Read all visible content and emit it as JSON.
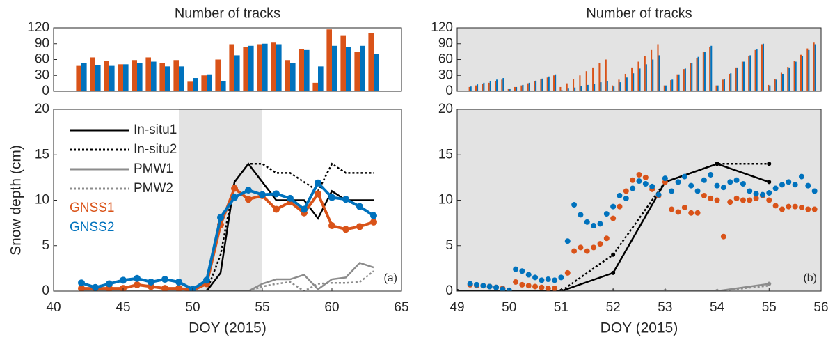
{
  "chart_data": [
    {
      "type": "bar",
      "title": "Number of tracks",
      "xlim": [
        40,
        65
      ],
      "ylim": [
        0,
        120
      ],
      "yticks": [
        0,
        30,
        60,
        90,
        120
      ],
      "x": [
        42,
        43,
        44,
        45,
        46,
        47,
        48,
        49,
        50,
        51,
        52,
        53,
        54,
        55,
        56,
        57,
        58,
        59,
        60,
        61,
        62,
        63
      ],
      "series": [
        {
          "color": "#d95319",
          "values": [
            48,
            64,
            57,
            51,
            59,
            64,
            53,
            59,
            18,
            30,
            60,
            89,
            84,
            89,
            92,
            59,
            80,
            16,
            117,
            106,
            74,
            110
          ]
        },
        {
          "color": "#0072bd",
          "values": [
            54,
            50,
            48,
            51,
            54,
            56,
            47,
            47,
            25,
            32,
            19,
            68,
            86,
            90,
            89,
            54,
            78,
            47,
            86,
            84,
            86,
            71
          ]
        }
      ]
    },
    {
      "type": "line",
      "xlabel": "DOY (2015)",
      "ylabel": "Snow depth (cm)",
      "annotation": "(a)",
      "legend": "upper left",
      "shade": [
        49,
        55
      ],
      "xlim": [
        40,
        65
      ],
      "xticks": [
        40,
        45,
        50,
        55,
        60,
        65
      ],
      "ylim": [
        0,
        20
      ],
      "yticks": [
        0,
        5,
        10,
        15,
        20
      ],
      "x": [
        42,
        43,
        44,
        45,
        46,
        47,
        48,
        49,
        50,
        51,
        52,
        53,
        54,
        55,
        56,
        57,
        58,
        59,
        60,
        61,
        62,
        63
      ],
      "series": [
        {
          "name": "In-situ1",
          "color": "#000000",
          "dash": "solid",
          "values": [
            0,
            0,
            0,
            0,
            0,
            0,
            0,
            0,
            0,
            0,
            2,
            12,
            14,
            12,
            10,
            10,
            10,
            8,
            11,
            10,
            10,
            10
          ]
        },
        {
          "name": "In-situ2",
          "color": "#000000",
          "dash": "dotted",
          "values": [
            0,
            0,
            0,
            0,
            0,
            0,
            0,
            0,
            0,
            0,
            4,
            12,
            14,
            14,
            13,
            13,
            12,
            11,
            14,
            13,
            13,
            13
          ]
        },
        {
          "name": "PMW1",
          "color": "#8c8c8c",
          "dash": "solid",
          "values": [
            0,
            0,
            0,
            0,
            0,
            0,
            0,
            0,
            0,
            0,
            0,
            0,
            0,
            0.8,
            1.3,
            1.3,
            1.8,
            0.2,
            1.3,
            1.5,
            3.1,
            2.6
          ]
        },
        {
          "name": "PMW2",
          "color": "#8c8c8c",
          "dash": "dotted",
          "values": [
            0,
            0,
            0,
            0,
            0,
            0,
            0,
            0,
            0,
            0,
            0,
            0,
            0,
            0.5,
            0.8,
            1.0,
            0,
            0.8,
            0.9,
            0.9,
            1.0,
            2.2
          ]
        },
        {
          "name": "GNSS1",
          "color": "#d95319",
          "dash": "solid",
          "marker": true,
          "values": [
            0.3,
            0.3,
            0.3,
            0.3,
            0.7,
            0.5,
            0.3,
            0.3,
            0.1,
            0.8,
            7.3,
            11.3,
            10.1,
            10.5,
            9,
            9.8,
            8.6,
            10.7,
            7.2,
            6.8,
            7.1,
            7.6
          ]
        },
        {
          "name": "GNSS2",
          "color": "#0072bd",
          "dash": "solid",
          "marker": true,
          "values": [
            0.9,
            0.4,
            0.8,
            1.2,
            1.4,
            1.0,
            1.3,
            1.0,
            0.2,
            1.2,
            8.1,
            10.3,
            11.1,
            10.6,
            10.7,
            10.2,
            9,
            11.9,
            10.3,
            10.1,
            9.3,
            8.3
          ]
        }
      ]
    },
    {
      "type": "bar",
      "title": "Number of tracks",
      "shade": [
        49,
        56
      ],
      "xlim": [
        49,
        56
      ],
      "ylim": [
        0,
        120
      ],
      "yticks": [
        0,
        30,
        60,
        90,
        120
      ],
      "x": [
        49.25,
        49.375,
        49.5,
        49.625,
        49.75,
        49.875,
        50,
        50.125,
        50.25,
        50.375,
        50.5,
        50.625,
        50.75,
        50.875,
        51,
        51.125,
        51.25,
        51.375,
        51.5,
        51.625,
        51.75,
        51.875,
        52,
        52.125,
        52.25,
        52.375,
        52.5,
        52.625,
        52.75,
        52.875,
        53,
        53.125,
        53.25,
        53.375,
        53.5,
        53.625,
        53.75,
        53.875,
        54,
        54.125,
        54.25,
        54.375,
        54.5,
        54.625,
        54.75,
        54.875,
        55,
        55.125,
        55.25,
        55.375,
        55.5,
        55.625,
        55.75,
        55.875
      ],
      "series": [
        {
          "color": "#d95319",
          "values": [
            8,
            11,
            14,
            16,
            19,
            22,
            4,
            8,
            11,
            15,
            19,
            23,
            26,
            30,
            8,
            15,
            23,
            30,
            38,
            45,
            53,
            60,
            11,
            22,
            33,
            45,
            56,
            67,
            78,
            89,
            11,
            21,
            32,
            42,
            53,
            63,
            74,
            84,
            11,
            22,
            33,
            45,
            56,
            67,
            78,
            89,
            12,
            23,
            35,
            46,
            58,
            69,
            81,
            92
          ]
        },
        {
          "color": "#0072bd",
          "values": [
            9,
            13,
            16,
            19,
            22,
            25,
            4,
            8,
            12,
            16,
            20,
            24,
            28,
            32,
            2,
            5,
            7,
            10,
            12,
            14,
            17,
            19,
            9,
            17,
            26,
            34,
            43,
            51,
            60,
            68,
            11,
            22,
            32,
            43,
            54,
            65,
            75,
            86,
            11,
            23,
            34,
            45,
            56,
            68,
            79,
            90,
            11,
            22,
            33,
            45,
            56,
            67,
            78,
            89
          ]
        }
      ]
    },
    {
      "type": "line",
      "xlabel": "DOY (2015)",
      "annotation": "(b)",
      "shade": [
        49,
        56
      ],
      "xlim": [
        49,
        56
      ],
      "xticks": [
        49,
        50,
        51,
        52,
        53,
        54,
        55,
        56
      ],
      "ylim": [
        0,
        20
      ],
      "yticks": [
        0,
        5,
        10,
        15,
        20
      ],
      "x": [
        49.25,
        49.375,
        49.5,
        49.625,
        49.75,
        49.875,
        50,
        50.125,
        50.25,
        50.375,
        50.5,
        50.625,
        50.75,
        50.875,
        51,
        51.125,
        51.25,
        51.375,
        51.5,
        51.625,
        51.75,
        51.875,
        52,
        52.125,
        52.25,
        52.375,
        52.5,
        52.625,
        52.75,
        52.875,
        53,
        53.125,
        53.25,
        53.375,
        53.5,
        53.625,
        53.75,
        53.875,
        54,
        54.125,
        54.25,
        54.375,
        54.5,
        54.625,
        54.75,
        54.875,
        55,
        55.125,
        55.25,
        55.375,
        55.5,
        55.625,
        55.75,
        55.875
      ],
      "series": [
        {
          "color": "#8c8c8c",
          "dash": "solid",
          "dots": true,
          "x": [
            49,
            50,
            51,
            52,
            53,
            54,
            55
          ],
          "values": [
            0,
            0,
            0,
            0,
            0,
            0,
            0.8
          ]
        },
        {
          "color": "#8c8c8c",
          "dash": "dotted",
          "x": [
            49,
            50,
            51,
            52,
            53,
            54,
            55
          ],
          "values": [
            0,
            0,
            0,
            0,
            0,
            0,
            0.6
          ]
        },
        {
          "color": "#000000",
          "dash": "solid",
          "dots": true,
          "x": [
            49,
            50,
            51,
            52,
            53,
            54,
            55
          ],
          "values": [
            0,
            0,
            0,
            2,
            12,
            14,
            12
          ]
        },
        {
          "color": "#000000",
          "dash": "dotted",
          "dots": true,
          "x": [
            49,
            50,
            51,
            52,
            53,
            54,
            55
          ],
          "values": [
            0,
            0,
            0,
            4,
            12,
            14,
            14
          ]
        },
        {
          "color": "#d95319",
          "marker": true,
          "values": [
            0.7,
            0.6,
            0.6,
            0.5,
            0.4,
            0.3,
            null,
            1.0,
            0.7,
            0.6,
            0.5,
            0.4,
            0.3,
            0.3,
            null,
            2,
            4.4,
            4.8,
            4.4,
            4.8,
            5.2,
            5.8,
            8.0,
            9.3,
            11,
            12.2,
            12.8,
            12.5,
            11.2,
            10.5,
            12,
            9,
            8.7,
            9.2,
            8.6,
            8.6,
            10.5,
            10.2,
            10,
            6,
            9.8,
            10.2,
            10,
            10,
            10.2,
            10.5,
            10,
            9.4,
            9.0,
            9.3,
            9.3,
            9.2,
            9.0,
            9.0
          ]
        },
        {
          "color": "#0072bd",
          "marker": true,
          "values": [
            0.8,
            0.7,
            0.6,
            0.5,
            0.4,
            0.2,
            0.1,
            2.4,
            2.2,
            1.8,
            1.5,
            1.2,
            1.3,
            1.2,
            1.5,
            5.5,
            9.5,
            8.4,
            7.6,
            7.2,
            7.4,
            8.5,
            9.3,
            10.5,
            10.2,
            11.3,
            12.1,
            11.8,
            11.5,
            10.6,
            12.4,
            11.0,
            12.0,
            12.6,
            11.6,
            11.0,
            12.2,
            12.8,
            11.6,
            11.4,
            12.0,
            12.2,
            11.8,
            11.0,
            10.7,
            10.6,
            10.8,
            11.3,
            11.7,
            12.0,
            11.7,
            12.6,
            11.6,
            11.0
          ]
        }
      ]
    }
  ]
}
